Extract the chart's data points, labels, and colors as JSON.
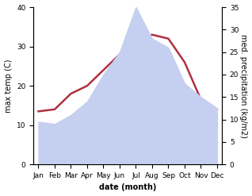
{
  "months": [
    "Jan",
    "Feb",
    "Mar",
    "Apr",
    "May",
    "Jun",
    "Jul",
    "Aug",
    "Sep",
    "Oct",
    "Nov",
    "Dec"
  ],
  "temp_c": [
    13.5,
    14.0,
    18.0,
    20.0,
    24.0,
    28.0,
    32.0,
    33.0,
    32.0,
    26.0,
    16.5,
    14.0
  ],
  "precip_mm": [
    9.5,
    9.0,
    11.0,
    14.0,
    20.0,
    25.0,
    35.0,
    28.0,
    26.0,
    18.0,
    15.0,
    12.5
  ],
  "temp_color": "#b03040",
  "precip_fill_color": "#c5cff0",
  "precip_edge_color": "#c5cff0",
  "temp_ylim": [
    0,
    40
  ],
  "precip_ylim": [
    0,
    35
  ],
  "temp_yticks": [
    0,
    10,
    20,
    30,
    40
  ],
  "precip_yticks": [
    0,
    5,
    10,
    15,
    20,
    25,
    30,
    35
  ],
  "xlabel": "date (month)",
  "ylabel_left": "max temp (C)",
  "ylabel_right": "med. precipitation (kg/m2)",
  "bg_color": "#ffffff",
  "line_width": 1.8,
  "title_fontsize": 7,
  "axis_fontsize": 7,
  "tick_fontsize": 6.5
}
